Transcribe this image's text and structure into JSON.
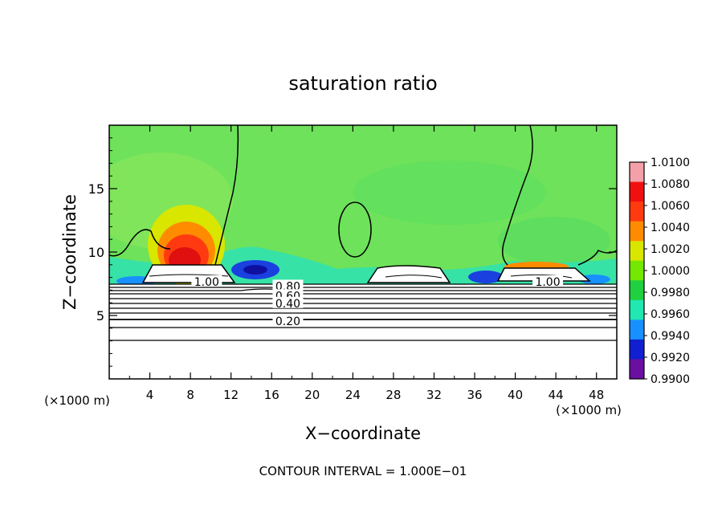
{
  "chart_data": {
    "type": "heatmap",
    "title": "saturation ratio",
    "xlabel": "X−coordinate",
    "ylabel": "Z−coordinate",
    "x_unit_left": "(×1000 m)",
    "x_unit_right": "(×1000 m)",
    "xlim": [
      0,
      50
    ],
    "ylim": [
      0,
      20
    ],
    "x_ticks": [
      4,
      8,
      12,
      16,
      20,
      24,
      28,
      32,
      36,
      40,
      44,
      48
    ],
    "y_ticks": [
      5,
      10,
      15
    ],
    "footer": "CONTOUR INTERVAL = 1.000E−01",
    "colorbar": {
      "levels": [
        "1.0100",
        "1.0080",
        "1.0060",
        "1.0040",
        "1.0020",
        "1.0000",
        "0.9980",
        "0.9960",
        "0.9940",
        "0.9920",
        "0.9900"
      ],
      "colors": [
        "#f4a0a8",
        "#f01010",
        "#ff3a10",
        "#ff8c00",
        "#d8e600",
        "#74e800",
        "#20d040",
        "#20e8b0",
        "#1890ff",
        "#1020d0",
        "#6a0fa0"
      ]
    },
    "contour_labels": [
      {
        "text": "1.00",
        "x": 9.6,
        "y": 7.6
      },
      {
        "text": "0.80",
        "x": 17.6,
        "y": 7.25
      },
      {
        "text": "0.60",
        "x": 17.6,
        "y": 6.5
      },
      {
        "text": "0.40",
        "x": 17.6,
        "y": 5.9
      },
      {
        "text": "0.20",
        "x": 17.6,
        "y": 4.5
      },
      {
        "text": "1.00",
        "x": 43.2,
        "y": 7.6
      }
    ]
  }
}
